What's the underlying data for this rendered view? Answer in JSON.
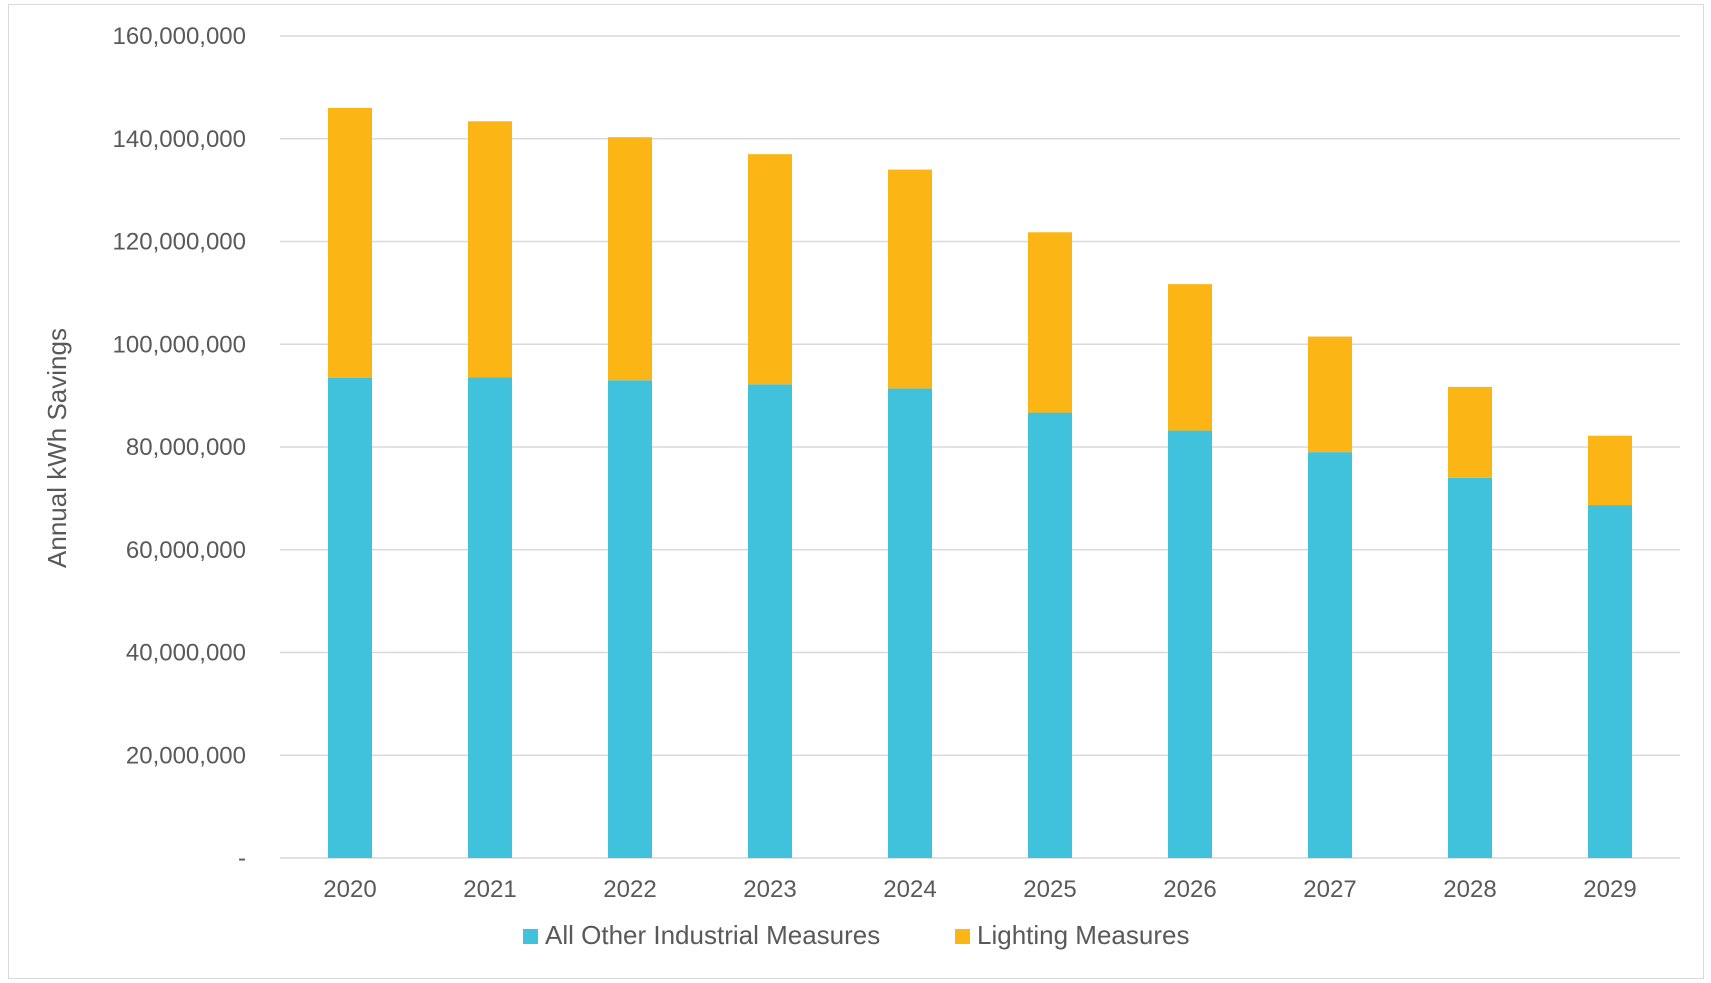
{
  "chart_data": {
    "type": "bar",
    "stacked": true,
    "title": "",
    "xlabel": "",
    "ylabel": "Annual kWh Savings",
    "ylim": [
      0,
      160000000
    ],
    "yticks": [
      0,
      20000000,
      40000000,
      60000000,
      80000000,
      100000000,
      120000000,
      140000000,
      160000000
    ],
    "ytick_labels": [
      "-",
      "20,000,000",
      "40,000,000",
      "60,000,000",
      "80,000,000",
      "100,000,000",
      "120,000,000",
      "140,000,000",
      "160,000,000"
    ],
    "categories": [
      "2020",
      "2021",
      "2022",
      "2023",
      "2024",
      "2025",
      "2026",
      "2027",
      "2028",
      "2029"
    ],
    "series": [
      {
        "name": "All Other Industrial Measures",
        "color": "#41C2DC",
        "values": [
          93500000,
          93600000,
          93000000,
          92200000,
          91400000,
          86700000,
          83200000,
          79000000,
          74000000,
          68700000
        ]
      },
      {
        "name": "Lighting Measures",
        "color": "#FBB515",
        "values": [
          52500000,
          49800000,
          47300000,
          44800000,
          42600000,
          35100000,
          28500000,
          22500000,
          17700000,
          13500000
        ]
      }
    ],
    "grid": true,
    "legend_position": "bottom-center"
  }
}
